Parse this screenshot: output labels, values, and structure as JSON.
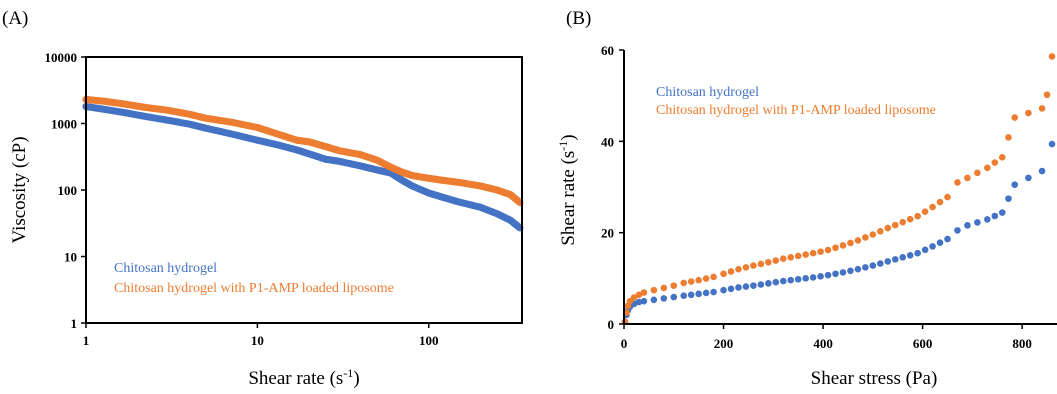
{
  "colors": {
    "blue": "#4472C4",
    "orange": "#ED7D31"
  },
  "chart_data": [
    {
      "panel_label": "(A)",
      "type": "scatter",
      "x_scale": "log",
      "y_scale": "log",
      "xlabel_main": "Shear rate (s",
      "xlabel_sup": "-1",
      "xlabel_end": ")",
      "ylabel": "Viscosity (cP)",
      "xlim": [
        1,
        350
      ],
      "ylim": [
        1,
        10000
      ],
      "x_ticks": [
        1,
        10,
        100
      ],
      "x_tick_labels": [
        "1",
        "10",
        "100"
      ],
      "y_ticks": [
        1,
        10,
        100,
        1000,
        10000
      ],
      "y_tick_labels": [
        "1",
        "10",
        "100",
        "1000",
        "10000"
      ],
      "legend": [
        "Chitosan hydrogel",
        "Chitosan hydrogel with P1-AMP loaded liposome"
      ],
      "series": [
        {
          "name": "Chitosan hydrogel",
          "color": "blue",
          "points": [
            [
              1,
              1800
            ],
            [
              1.3,
              1620
            ],
            [
              1.7,
              1450
            ],
            [
              2.2,
              1280
            ],
            [
              3,
              1120
            ],
            [
              4,
              980
            ],
            [
              5,
              850
            ],
            [
              7,
              700
            ],
            [
              10,
              560
            ],
            [
              13,
              480
            ],
            [
              17,
              400
            ],
            [
              20,
              350
            ],
            [
              25,
              290
            ],
            [
              30,
              270
            ],
            [
              40,
              230
            ],
            [
              50,
              200
            ],
            [
              60,
              180
            ],
            [
              70,
              140
            ],
            [
              80,
              115
            ],
            [
              100,
              90
            ],
            [
              120,
              78
            ],
            [
              150,
              66
            ],
            [
              200,
              55
            ],
            [
              250,
              44
            ],
            [
              300,
              35
            ],
            [
              340,
              27
            ]
          ]
        },
        {
          "name": "Chitosan hydrogel with P1-AMP loaded liposome",
          "color": "orange",
          "points": [
            [
              1,
              2300
            ],
            [
              1.3,
              2150
            ],
            [
              1.7,
              1950
            ],
            [
              2.2,
              1750
            ],
            [
              3,
              1580
            ],
            [
              4,
              1380
            ],
            [
              5,
              1200
            ],
            [
              7,
              1050
            ],
            [
              10,
              870
            ],
            [
              13,
              700
            ],
            [
              17,
              560
            ],
            [
              20,
              530
            ],
            [
              25,
              450
            ],
            [
              30,
              390
            ],
            [
              40,
              340
            ],
            [
              50,
              280
            ],
            [
              60,
              220
            ],
            [
              70,
              185
            ],
            [
              80,
              165
            ],
            [
              100,
              150
            ],
            [
              120,
              140
            ],
            [
              150,
              130
            ],
            [
              200,
              115
            ],
            [
              250,
              100
            ],
            [
              300,
              85
            ],
            [
              340,
              65
            ]
          ]
        }
      ]
    },
    {
      "panel_label": "(B)",
      "type": "scatter",
      "xlabel": "Shear stress (Pa)",
      "ylabel_main": "Shear rate (s",
      "ylabel_sup": "-1",
      "ylabel_end": ")",
      "xlim": [
        0,
        870
      ],
      "ylim": [
        0,
        60
      ],
      "x_ticks": [
        0,
        200,
        400,
        600,
        800
      ],
      "x_tick_labels": [
        "0",
        "200",
        "400",
        "600",
        "800"
      ],
      "y_ticks": [
        0,
        20,
        40,
        60
      ],
      "y_tick_labels": [
        "0",
        "20",
        "40",
        "60"
      ],
      "legend": [
        "Chitosan hydrogel",
        "Chitosan hydrogel with P1-AMP loaded liposome"
      ],
      "series": [
        {
          "name": "Chitosan hydrogel",
          "color": "blue",
          "points": [
            [
              2,
              0.5
            ],
            [
              5,
              2
            ],
            [
              8,
              3
            ],
            [
              12,
              3.8
            ],
            [
              20,
              4.4
            ],
            [
              30,
              4.8
            ],
            [
              40,
              5
            ],
            [
              60,
              5.3
            ],
            [
              80,
              5.6
            ],
            [
              100,
              5.9
            ],
            [
              120,
              6.2
            ],
            [
              150,
              6.6
            ],
            [
              180,
              7
            ],
            [
              200,
              7.4
            ],
            [
              230,
              8
            ],
            [
              260,
              8.4
            ],
            [
              290,
              8.9
            ],
            [
              320,
              9.4
            ],
            [
              350,
              9.8
            ],
            [
              380,
              10.2
            ],
            [
              410,
              10.7
            ],
            [
              440,
              11.3
            ],
            [
              470,
              12
            ],
            [
              500,
              12.8
            ],
            [
              530,
              13.7
            ],
            [
              560,
              14.6
            ],
            [
              590,
              15.5
            ],
            [
              620,
              17
            ],
            [
              650,
              18.6
            ],
            [
              670,
              20.5
            ],
            [
              690,
              21.6
            ],
            [
              730,
              22.9
            ],
            [
              760,
              24.4
            ],
            [
              785,
              30.5
            ],
            [
              840,
              33.5
            ],
            [
              860,
              39.4
            ]
          ]
        },
        {
          "name": "Chitosan hydrogel with P1-AMP loaded liposome",
          "color": "orange",
          "points": [
            [
              2,
              0.5
            ],
            [
              5,
              2.5
            ],
            [
              8,
              4
            ],
            [
              12,
              5
            ],
            [
              20,
              5.8
            ],
            [
              30,
              6.4
            ],
            [
              40,
              6.9
            ],
            [
              60,
              7.4
            ],
            [
              80,
              7.9
            ],
            [
              100,
              8.4
            ],
            [
              120,
              9
            ],
            [
              150,
              9.6
            ],
            [
              180,
              10.3
            ],
            [
              200,
              11
            ],
            [
              230,
              12
            ],
            [
              260,
              12.8
            ],
            [
              290,
              13.5
            ],
            [
              320,
              14.3
            ],
            [
              350,
              14.9
            ],
            [
              380,
              15.5
            ],
            [
              410,
              16.2
            ],
            [
              440,
              17.2
            ],
            [
              470,
              18.3
            ],
            [
              500,
              19.6
            ],
            [
              530,
              21
            ],
            [
              560,
              22.3
            ],
            [
              590,
              23.6
            ],
            [
              620,
              25.6
            ],
            [
              650,
              27.8
            ],
            [
              670,
              31
            ],
            [
              690,
              32
            ],
            [
              730,
              34.2
            ],
            [
              760,
              36.5
            ],
            [
              785,
              45.2
            ],
            [
              840,
              47.2
            ],
            [
              850,
              50.2
            ],
            [
              860,
              58.6
            ]
          ]
        }
      ]
    }
  ]
}
